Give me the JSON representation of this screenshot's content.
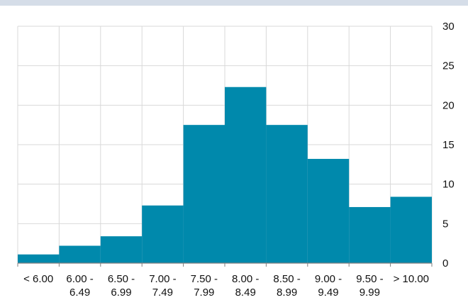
{
  "chart_data": {
    "type": "bar",
    "subtype": "histogram",
    "categories": [
      [
        "< 6.00"
      ],
      [
        "6.00 -",
        "6.49"
      ],
      [
        "6.50 -",
        "6.99"
      ],
      [
        "7.00 -",
        "7.49"
      ],
      [
        "7.50 -",
        "7.99"
      ],
      [
        "8.00 -",
        "8.49"
      ],
      [
        "8.50 -",
        "8.99"
      ],
      [
        "9.00 -",
        "9.49"
      ],
      [
        "9.50 -",
        "9.99"
      ],
      [
        "> 10.00"
      ]
    ],
    "values": [
      1.1,
      2.2,
      3.4,
      7.3,
      17.5,
      22.3,
      17.5,
      13.2,
      7.1,
      8.4
    ],
    "ylim": [
      0,
      30
    ],
    "yticks": [
      0,
      5,
      10,
      15,
      20,
      25,
      30
    ],
    "ytick_side": "right",
    "grid": "vertical and horizontal",
    "bar_color": "#0089ac",
    "grid_color": "#d9d9d9",
    "axis_color": "#7f7f7f",
    "title": "",
    "xlabel": "",
    "ylabel": ""
  }
}
